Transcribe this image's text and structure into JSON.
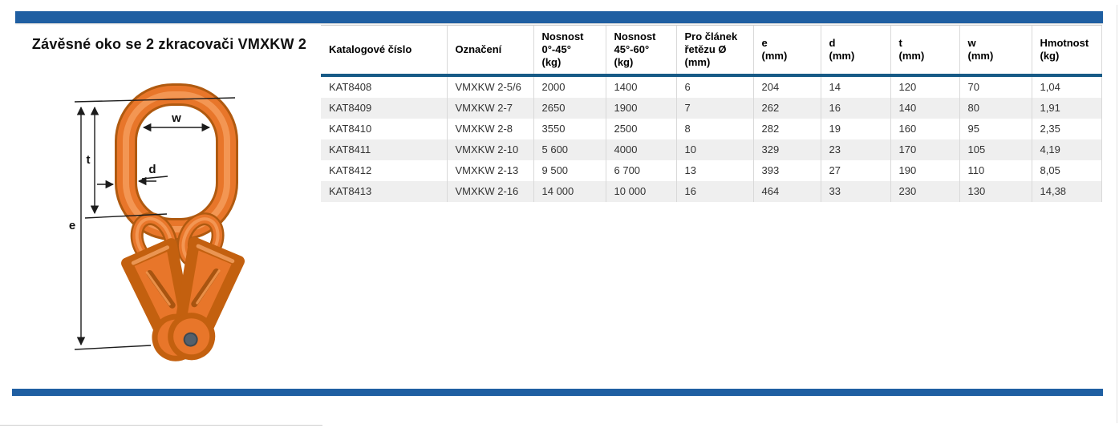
{
  "page": {
    "title": "Závěsné oko se 2 zkracovači VMXKW 2"
  },
  "colors": {
    "accent_bar": "#1f5fa2",
    "header_rule": "#175a86",
    "row_stripe": "#efefef",
    "product_orange": "#e8762a"
  },
  "diagram": {
    "description": "orange master link with two chain shortening clutches, dimension arrows",
    "dimension_labels": {
      "w": "w",
      "t": "t",
      "d": "d",
      "e": "e"
    }
  },
  "table": {
    "columns": [
      "Katalogové číslo",
      "Označení",
      "Nosnost\n0°-45°\n(kg)",
      "Nosnost\n45°-60°\n(kg)",
      "Pro článek\nřetězu Ø\n(mm)",
      "e\n(mm)",
      "d\n(mm)",
      "t\n(mm)",
      "w\n(mm)",
      "Hmotnost\n(kg)"
    ],
    "rows": [
      [
        "KAT8408",
        "VMXKW 2-5/6",
        "2000",
        "1400",
        "6",
        "204",
        "14",
        "120",
        "70",
        "1,04"
      ],
      [
        "KAT8409",
        "VMXKW 2-7",
        "2650",
        "1900",
        "7",
        "262",
        "16",
        "140",
        "80",
        "1,91"
      ],
      [
        "KAT8410",
        "VMXKW 2-8",
        "3550",
        "2500",
        "8",
        "282",
        "19",
        "160",
        "95",
        "2,35"
      ],
      [
        "KAT8411",
        "VMXKW 2-10",
        "5 600",
        "4000",
        "10",
        "329",
        "23",
        "170",
        "105",
        "4,19"
      ],
      [
        "KAT8412",
        "VMXKW 2-13",
        "9 500",
        "6 700",
        "13",
        "393",
        "27",
        "190",
        "110",
        "8,05"
      ],
      [
        "KAT8413",
        "VMXKW 2-16",
        "14 000",
        "10 000",
        "16",
        "464",
        "33",
        "230",
        "130",
        "14,38"
      ]
    ]
  }
}
